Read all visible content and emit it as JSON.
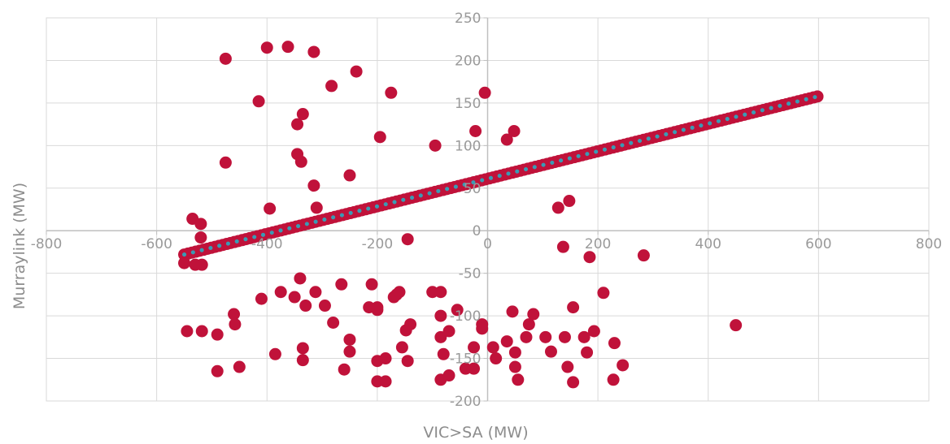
{
  "chart_data": {
    "type": "scatter",
    "xlabel": "VIC>SA (MW)",
    "ylabel": "Murraylink (MW)",
    "xlim": [
      -800,
      800
    ],
    "ylim": [
      -200,
      250
    ],
    "x_ticks": [
      -800,
      -600,
      -400,
      -200,
      0,
      200,
      400,
      600,
      800
    ],
    "y_ticks": [
      -200,
      -150,
      -100,
      -50,
      0,
      50,
      100,
      150,
      200,
      250
    ],
    "grid": true,
    "legend": "none",
    "colors": {
      "points": "#c0123a",
      "trend": "#3a9bb4",
      "grid": "#d9d9d9",
      "axis": "#bfbfbf"
    },
    "trend": {
      "from": [
        -550,
        -28
      ],
      "to": [
        600,
        158
      ]
    },
    "band": {
      "x_min": -550,
      "x_max": 600,
      "step": 7,
      "y_at_x_min": -28,
      "y_at_x_max": 158
    },
    "outliers": [
      [
        -475,
        202
      ],
      [
        -400,
        215
      ],
      [
        -362,
        216
      ],
      [
        -315,
        210
      ],
      [
        -415,
        152
      ],
      [
        -345,
        125
      ],
      [
        -335,
        137
      ],
      [
        -283,
        170
      ],
      [
        -238,
        187
      ],
      [
        -175,
        162
      ],
      [
        -5,
        162
      ],
      [
        -345,
        90
      ],
      [
        -338,
        81
      ],
      [
        -475,
        80
      ],
      [
        -315,
        53
      ],
      [
        -250,
        65
      ],
      [
        -195,
        110
      ],
      [
        -95,
        100
      ],
      [
        -22,
        117
      ],
      [
        48,
        117
      ],
      [
        35,
        107
      ],
      [
        -395,
        26
      ],
      [
        -310,
        27
      ],
      [
        -535,
        14
      ],
      [
        -520,
        8
      ],
      [
        -520,
        -8
      ],
      [
        -145,
        -10
      ],
      [
        148,
        35
      ],
      [
        128,
        27
      ],
      [
        137,
        -19
      ],
      [
        185,
        -31
      ],
      [
        283,
        -29
      ],
      [
        -550,
        -38
      ],
      [
        -530,
        -40
      ],
      [
        -518,
        -40
      ],
      [
        -410,
        -80
      ],
      [
        -375,
        -72
      ],
      [
        -340,
        -56
      ],
      [
        -312,
        -72
      ],
      [
        -295,
        -88
      ],
      [
        -330,
        -88
      ],
      [
        -265,
        -63
      ],
      [
        -210,
        -63
      ],
      [
        -200,
        -90
      ],
      [
        -200,
        -93
      ],
      [
        -170,
        -78
      ],
      [
        -165,
        -75
      ],
      [
        -160,
        -72
      ],
      [
        -100,
        -72
      ],
      [
        -85,
        -72
      ],
      [
        -55,
        -93
      ],
      [
        -85,
        -100
      ],
      [
        -10,
        -110
      ],
      [
        -10,
        -115
      ],
      [
        45,
        -95
      ],
      [
        83,
        -98
      ],
      [
        75,
        -110
      ],
      [
        155,
        -90
      ],
      [
        210,
        -73
      ],
      [
        -460,
        -98
      ],
      [
        -458,
        -110
      ],
      [
        -518,
        -118
      ],
      [
        -545,
        -118
      ],
      [
        -490,
        -122
      ],
      [
        -350,
        -78
      ],
      [
        -280,
        -108
      ],
      [
        -250,
        -128
      ],
      [
        -250,
        -142
      ],
      [
        -215,
        -90
      ],
      [
        -140,
        -110
      ],
      [
        -148,
        -117
      ],
      [
        -85,
        -125
      ],
      [
        -70,
        -118
      ],
      [
        -155,
        -137
      ],
      [
        -200,
        -153
      ],
      [
        -185,
        -150
      ],
      [
        -145,
        -153
      ],
      [
        -385,
        -145
      ],
      [
        -335,
        -152
      ],
      [
        -335,
        -138
      ],
      [
        -25,
        -137
      ],
      [
        10,
        -137
      ],
      [
        35,
        -130
      ],
      [
        50,
        -143
      ],
      [
        70,
        -125
      ],
      [
        105,
        -125
      ],
      [
        115,
        -142
      ],
      [
        140,
        -125
      ],
      [
        175,
        -125
      ],
      [
        193,
        -118
      ],
      [
        180,
        -143
      ],
      [
        230,
        -132
      ],
      [
        -490,
        -165
      ],
      [
        -260,
        -163
      ],
      [
        -450,
        -160
      ],
      [
        -40,
        -162
      ],
      [
        -25,
        -162
      ],
      [
        -200,
        -177
      ],
      [
        -185,
        -177
      ],
      [
        -85,
        -175
      ],
      [
        -70,
        -170
      ],
      [
        -80,
        -145
      ],
      [
        15,
        -150
      ],
      [
        50,
        -160
      ],
      [
        55,
        -175
      ],
      [
        145,
        -160
      ],
      [
        155,
        -178
      ],
      [
        228,
        -175
      ],
      [
        245,
        -158
      ],
      [
        450,
        -111
      ]
    ]
  }
}
